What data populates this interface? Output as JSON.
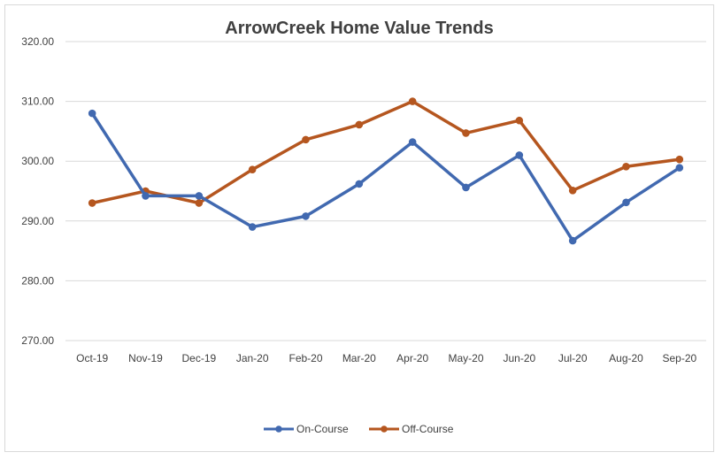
{
  "chart_data": {
    "type": "line",
    "title": "ArrowCreek Home Value Trends",
    "xlabel": "",
    "ylabel": "",
    "categories": [
      "Oct-19",
      "Nov-19",
      "Dec-19",
      "Jan-20",
      "Feb-20",
      "Mar-20",
      "Apr-20",
      "May-20",
      "Jun-20",
      "Jul-20",
      "Aug-20",
      "Sep-20"
    ],
    "yticks": [
      "270.00",
      "280.00",
      "290.00",
      "300.00",
      "310.00",
      "320.00"
    ],
    "ylim": [
      270,
      320
    ],
    "grid": true,
    "legend_position": "bottom",
    "series": [
      {
        "name": "On-Course",
        "color": "#4169b0",
        "values": [
          308.0,
          294.2,
          294.2,
          289.0,
          290.8,
          296.2,
          303.2,
          295.6,
          301.0,
          286.7,
          293.1,
          298.9
        ]
      },
      {
        "name": "Off-Course",
        "color": "#b5561f",
        "values": [
          293.0,
          295.0,
          293.0,
          298.6,
          303.6,
          306.1,
          310.0,
          304.7,
          306.8,
          295.1,
          299.1,
          300.3
        ]
      }
    ]
  }
}
